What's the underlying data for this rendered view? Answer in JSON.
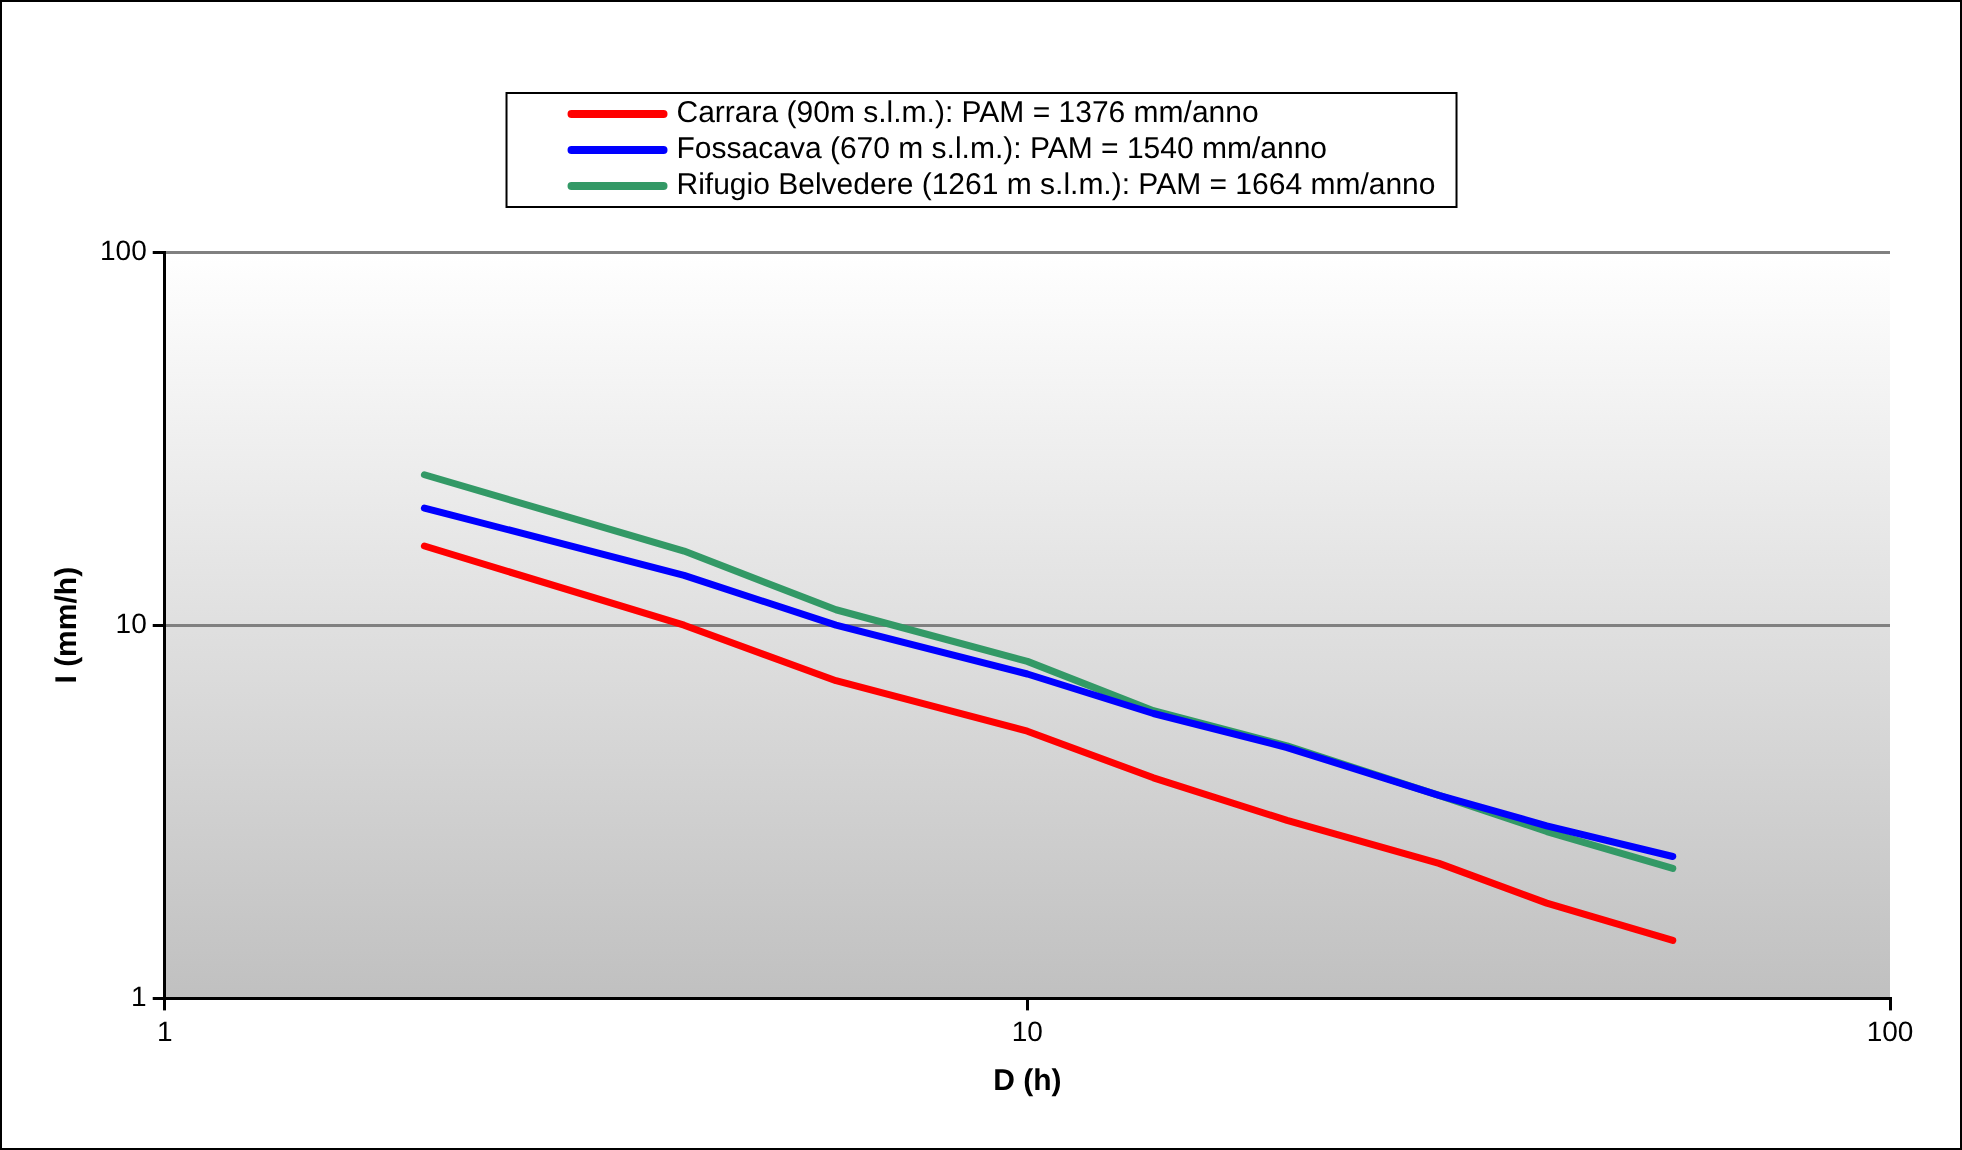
{
  "chart_data": {
    "type": "line",
    "xlabel": "D (h)",
    "ylabel": "I (mm/h)",
    "log": "xy",
    "xlim": [
      1,
      100
    ],
    "xticks": [
      1,
      10,
      100
    ],
    "ylim": [
      1,
      100
    ],
    "yticks": [
      1,
      10,
      100
    ],
    "grid": "y",
    "legend": "top",
    "marker": "none",
    "line_style": "solid",
    "series": [
      {
        "name": "Carrara (90m s.l.m.): PAM = 1376 mm/anno",
        "color": "#ff0000",
        "x": [
          2,
          4,
          6,
          10,
          14,
          20,
          30,
          40,
          56
        ],
        "values": [
          16.3,
          10,
          7.1,
          5.2,
          3.9,
          3.0,
          2.3,
          1.8,
          1.43
        ]
      },
      {
        "name": "Fossacava (670 m s.l.m.): PAM = 1540 mm/anno",
        "color": "#0000ff",
        "x": [
          2,
          4,
          6,
          10,
          14,
          20,
          30,
          40,
          56
        ],
        "values": [
          20.6,
          13.6,
          10,
          7.4,
          5.8,
          4.7,
          3.5,
          2.9,
          2.4
        ]
      },
      {
        "name": "Rifugio Belvedere (1261 m s.l.m.): PAM = 1664 mm/anno",
        "color": "#339966",
        "x": [
          2,
          4,
          6,
          10,
          14,
          20,
          30,
          40,
          56
        ],
        "values": [
          25.3,
          15.8,
          11,
          8,
          5.9,
          4.75,
          3.5,
          2.8,
          2.23
        ]
      }
    ]
  }
}
